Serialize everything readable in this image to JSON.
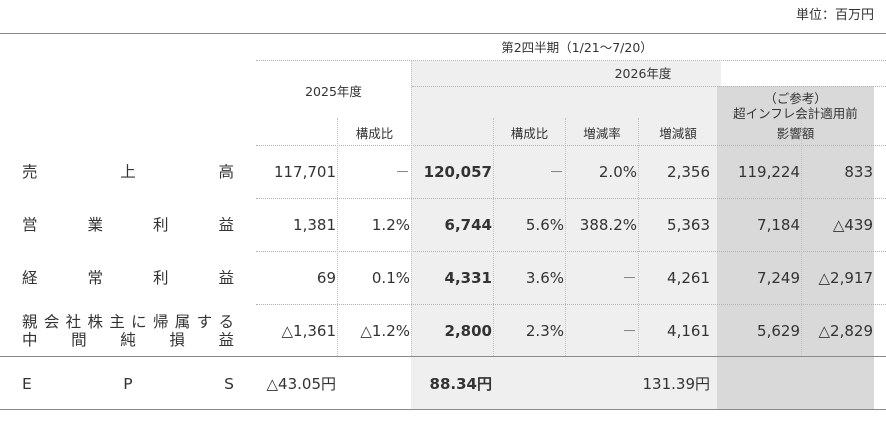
{
  "unit_note": "単位：百万円",
  "header": {
    "period": "第2四半期（1/21～7/20）",
    "fy_prev": "2025年度",
    "fy_curr": "2026年度",
    "ref_line1": "（ご参考）",
    "ref_line2": "超インフレ会計適用前",
    "col_share_prev": "構成比",
    "col_share_curr": "構成比",
    "col_growth": "増減率",
    "col_change": "増減額",
    "col_impact": "影響額"
  },
  "rows": [
    {
      "label_chars": [
        "売",
        "上",
        "高"
      ],
      "prev": "117,701",
      "prev_share": "－",
      "curr": "120,057",
      "curr_share": "－",
      "growth": "2.0%",
      "change": "2,356",
      "ref": "119,224",
      "impact": "833"
    },
    {
      "label_chars": [
        "営",
        "業",
        "利",
        "益"
      ],
      "prev": "1,381",
      "prev_share": "1.2%",
      "curr": "6,744",
      "curr_share": "5.6%",
      "growth": "388.2%",
      "change": "5,363",
      "ref": "7,184",
      "impact": "△439"
    },
    {
      "label_chars": [
        "経",
        "常",
        "利",
        "益"
      ],
      "prev": "69",
      "prev_share": "0.1%",
      "curr": "4,331",
      "curr_share": "3.6%",
      "growth": "－",
      "change": "4,261",
      "ref": "7,249",
      "impact": "△2,917"
    },
    {
      "label_line1": [
        "親",
        "会",
        "社",
        "株",
        "主",
        "に",
        "帰",
        "属",
        "す",
        "る"
      ],
      "label_line2": [
        "中",
        "間",
        "純",
        "損",
        "益"
      ],
      "prev": "△1,361",
      "prev_share": "△1.2%",
      "curr": "2,800",
      "curr_share": "2.3%",
      "growth": "－",
      "change": "4,161",
      "ref": "5,629",
      "impact": "△2,829"
    }
  ],
  "eps": {
    "label_chars": [
      "E",
      "P",
      "S"
    ],
    "prev": "△43.05円",
    "curr": "88.34円",
    "change": "131.39円"
  }
}
